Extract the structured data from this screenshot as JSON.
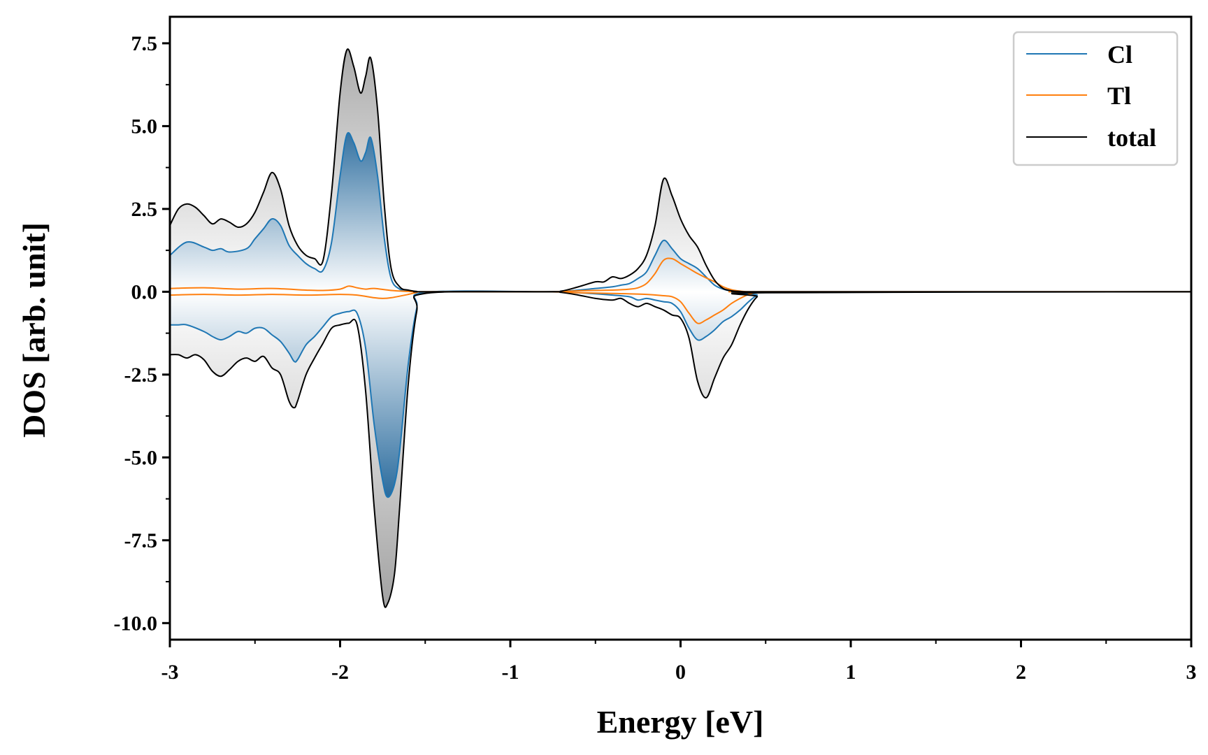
{
  "chart_data": {
    "type": "area",
    "title": "",
    "xlabel": "Energy [eV]",
    "ylabel": "DOS [arb. unit]",
    "xlim": [
      -3,
      3
    ],
    "ylim": [
      -10.5,
      8.3
    ],
    "x_ticks": [
      -3,
      -2,
      -1,
      0,
      1,
      2,
      3
    ],
    "x_tick_labels": [
      "-3",
      "-2",
      "-1",
      "0",
      "1",
      "2",
      "3"
    ],
    "y_ticks": [
      -10,
      -7.5,
      -5,
      -2.5,
      0,
      2.5,
      5,
      7.5
    ],
    "y_tick_labels": [
      "-10.0",
      "-7.5",
      "-5.0",
      "-2.5",
      "0.0",
      "2.5",
      "5.0",
      "7.5"
    ],
    "grid": false,
    "legend_position": "top-right",
    "colors": {
      "Cl": "#1f77b4",
      "Tl": "#ff7f0e",
      "total": "#000000",
      "total_fill": "#9a9a9a",
      "cl_fill": "#2b6c9e"
    },
    "series": [
      {
        "name": "Cl",
        "spin_up": {
          "x": [
            -3.0,
            -2.9,
            -2.8,
            -2.75,
            -2.7,
            -2.65,
            -2.55,
            -2.5,
            -2.45,
            -2.4,
            -2.35,
            -2.3,
            -2.25,
            -2.2,
            -2.15,
            -2.1,
            -2.05,
            -2.0,
            -1.96,
            -1.92,
            -1.88,
            -1.85,
            -1.82,
            -1.78,
            -1.74,
            -1.7,
            -1.65,
            -1.6,
            -1.55,
            -1.5,
            -0.8,
            -0.7,
            -0.6,
            -0.5,
            -0.4,
            -0.35,
            -0.3,
            -0.25,
            -0.2,
            -0.15,
            -0.1,
            -0.05,
            0.0,
            0.05,
            0.1,
            0.15,
            0.2,
            0.25,
            0.3,
            0.35,
            0.4,
            0.45,
            0.5,
            3.0
          ],
          "y": [
            1.1,
            1.5,
            1.35,
            1.25,
            1.3,
            1.2,
            1.3,
            1.6,
            1.9,
            2.2,
            2.0,
            1.4,
            1.1,
            0.85,
            0.7,
            0.65,
            1.5,
            3.5,
            4.75,
            4.5,
            3.95,
            4.2,
            4.65,
            3.5,
            1.6,
            0.4,
            0.08,
            0.02,
            0.0,
            0.0,
            0.0,
            0.01,
            0.05,
            0.1,
            0.15,
            0.2,
            0.25,
            0.4,
            0.6,
            1.1,
            1.55,
            1.3,
            1.0,
            0.85,
            0.7,
            0.45,
            0.2,
            0.08,
            0.02,
            0.01,
            0.0,
            0.0,
            0.0,
            0.0
          ]
        },
        "spin_down": {
          "x": [
            -3.0,
            -2.95,
            -2.9,
            -2.8,
            -2.75,
            -2.7,
            -2.65,
            -2.6,
            -2.55,
            -2.5,
            -2.45,
            -2.4,
            -2.35,
            -2.3,
            -2.27,
            -2.25,
            -2.2,
            -2.15,
            -2.1,
            -2.05,
            -2.0,
            -1.95,
            -1.9,
            -1.85,
            -1.8,
            -1.75,
            -1.72,
            -1.68,
            -1.65,
            -1.6,
            -1.55,
            -1.5,
            -0.8,
            -0.7,
            -0.6,
            -0.5,
            -0.4,
            -0.3,
            -0.25,
            -0.2,
            -0.15,
            -0.1,
            -0.05,
            0.0,
            0.05,
            0.1,
            0.15,
            0.2,
            0.25,
            0.3,
            0.35,
            0.4,
            0.45,
            0.5,
            3.0
          ],
          "y": [
            -1.0,
            -1.0,
            -1.0,
            -1.2,
            -1.35,
            -1.45,
            -1.35,
            -1.2,
            -1.25,
            -1.1,
            -1.1,
            -1.3,
            -1.5,
            -1.85,
            -2.1,
            -2.05,
            -1.6,
            -1.35,
            -1.05,
            -0.75,
            -0.65,
            -0.6,
            -0.65,
            -1.7,
            -4.0,
            -5.7,
            -6.2,
            -5.8,
            -4.8,
            -2.2,
            -0.5,
            -0.02,
            0.0,
            0.0,
            -0.03,
            -0.06,
            -0.1,
            -0.15,
            -0.25,
            -0.2,
            -0.25,
            -0.3,
            -0.35,
            -0.6,
            -1.1,
            -1.45,
            -1.35,
            -1.15,
            -0.9,
            -0.75,
            -0.55,
            -0.3,
            -0.1,
            -0.02,
            0.0
          ]
        }
      },
      {
        "name": "Tl",
        "spin_up": {
          "x": [
            -3.0,
            -2.8,
            -2.6,
            -2.4,
            -2.2,
            -2.1,
            -2.0,
            -1.95,
            -1.9,
            -1.85,
            -1.8,
            -1.7,
            -1.6,
            -1.55,
            -1.5,
            -0.8,
            -0.6,
            -0.4,
            -0.3,
            -0.25,
            -0.2,
            -0.15,
            -0.1,
            -0.05,
            0.0,
            0.05,
            0.1,
            0.15,
            0.2,
            0.25,
            0.3,
            0.35,
            0.4,
            0.5,
            3.0
          ],
          "y": [
            0.1,
            0.12,
            0.08,
            0.1,
            0.05,
            0.04,
            0.08,
            0.17,
            0.12,
            0.08,
            0.1,
            0.04,
            0.01,
            0.0,
            0.0,
            0.0,
            0.03,
            0.05,
            0.08,
            0.12,
            0.25,
            0.55,
            0.95,
            1.0,
            0.85,
            0.7,
            0.55,
            0.42,
            0.3,
            0.15,
            0.06,
            0.02,
            0.0,
            0.0,
            0.0
          ]
        },
        "spin_down": {
          "x": [
            -3.0,
            -2.8,
            -2.6,
            -2.4,
            -2.2,
            -2.0,
            -1.9,
            -1.8,
            -1.75,
            -1.7,
            -1.6,
            -1.55,
            -1.5,
            -0.8,
            -0.6,
            -0.4,
            -0.2,
            -0.1,
            -0.05,
            0.0,
            0.05,
            0.1,
            0.15,
            0.2,
            0.25,
            0.3,
            0.35,
            0.4,
            0.45,
            0.5,
            3.0
          ],
          "y": [
            -0.1,
            -0.08,
            -0.1,
            -0.08,
            -0.1,
            -0.08,
            -0.1,
            -0.18,
            -0.2,
            -0.18,
            -0.08,
            -0.02,
            0.0,
            0.0,
            -0.03,
            -0.05,
            -0.08,
            -0.12,
            -0.15,
            -0.3,
            -0.65,
            -0.95,
            -0.85,
            -0.7,
            -0.55,
            -0.35,
            -0.2,
            -0.08,
            -0.02,
            0.0,
            0.0
          ]
        }
      },
      {
        "name": "total",
        "spin_up": {
          "x": [
            -3.0,
            -2.95,
            -2.9,
            -2.85,
            -2.8,
            -2.75,
            -2.7,
            -2.65,
            -2.6,
            -2.55,
            -2.5,
            -2.45,
            -2.4,
            -2.35,
            -2.3,
            -2.25,
            -2.2,
            -2.15,
            -2.1,
            -2.05,
            -2.0,
            -1.96,
            -1.92,
            -1.88,
            -1.85,
            -1.82,
            -1.78,
            -1.74,
            -1.7,
            -1.65,
            -1.6,
            -1.55,
            -1.5,
            -0.8,
            -0.7,
            -0.6,
            -0.5,
            -0.45,
            -0.4,
            -0.35,
            -0.3,
            -0.25,
            -0.2,
            -0.15,
            -0.1,
            -0.05,
            0.0,
            0.05,
            0.1,
            0.15,
            0.2,
            0.25,
            0.3,
            0.35,
            0.4,
            0.45,
            0.5,
            3.0
          ],
          "y": [
            2.0,
            2.5,
            2.65,
            2.55,
            2.3,
            2.05,
            2.2,
            2.1,
            1.95,
            2.05,
            2.4,
            3.0,
            3.6,
            3.1,
            2.0,
            1.4,
            1.1,
            1.0,
            0.95,
            3.0,
            6.0,
            7.3,
            6.8,
            6.0,
            6.5,
            7.05,
            5.5,
            2.6,
            0.7,
            0.15,
            0.05,
            0.01,
            0.0,
            0.0,
            0.02,
            0.15,
            0.3,
            0.3,
            0.45,
            0.4,
            0.5,
            0.7,
            1.1,
            2.0,
            3.4,
            2.9,
            2.2,
            1.7,
            1.35,
            0.8,
            0.35,
            0.1,
            0.03,
            0.01,
            0.0,
            0.0,
            0.0,
            0.0
          ]
        },
        "spin_down": {
          "x": [
            -3.0,
            -2.95,
            -2.9,
            -2.85,
            -2.8,
            -2.75,
            -2.7,
            -2.65,
            -2.6,
            -2.55,
            -2.5,
            -2.45,
            -2.4,
            -2.35,
            -2.3,
            -2.27,
            -2.25,
            -2.2,
            -2.15,
            -2.1,
            -2.05,
            -2.0,
            -1.95,
            -1.9,
            -1.85,
            -1.8,
            -1.75,
            -1.72,
            -1.68,
            -1.65,
            -1.6,
            -1.55,
            -1.5,
            -0.8,
            -0.7,
            -0.6,
            -0.5,
            -0.4,
            -0.35,
            -0.3,
            -0.25,
            -0.2,
            -0.15,
            -0.1,
            -0.05,
            0.0,
            0.05,
            0.1,
            0.15,
            0.2,
            0.25,
            0.3,
            0.35,
            0.4,
            0.45,
            0.5,
            3.0
          ],
          "y": [
            -1.9,
            -1.9,
            -2.0,
            -1.9,
            -2.05,
            -2.4,
            -2.55,
            -2.35,
            -2.1,
            -2.0,
            -2.1,
            -1.95,
            -2.3,
            -2.5,
            -3.3,
            -3.5,
            -3.3,
            -2.5,
            -2.0,
            -1.55,
            -1.1,
            -1.0,
            -0.95,
            -1.0,
            -3.0,
            -6.5,
            -9.2,
            -9.4,
            -8.5,
            -6.5,
            -2.8,
            -0.6,
            -0.05,
            0.0,
            -0.02,
            -0.1,
            -0.2,
            -0.25,
            -0.2,
            -0.35,
            -0.45,
            -0.35,
            -0.45,
            -0.55,
            -0.7,
            -0.8,
            -1.4,
            -2.7,
            -3.2,
            -2.6,
            -2.0,
            -1.6,
            -1.0,
            -0.5,
            -0.15,
            -0.03,
            0.0
          ]
        }
      }
    ]
  }
}
